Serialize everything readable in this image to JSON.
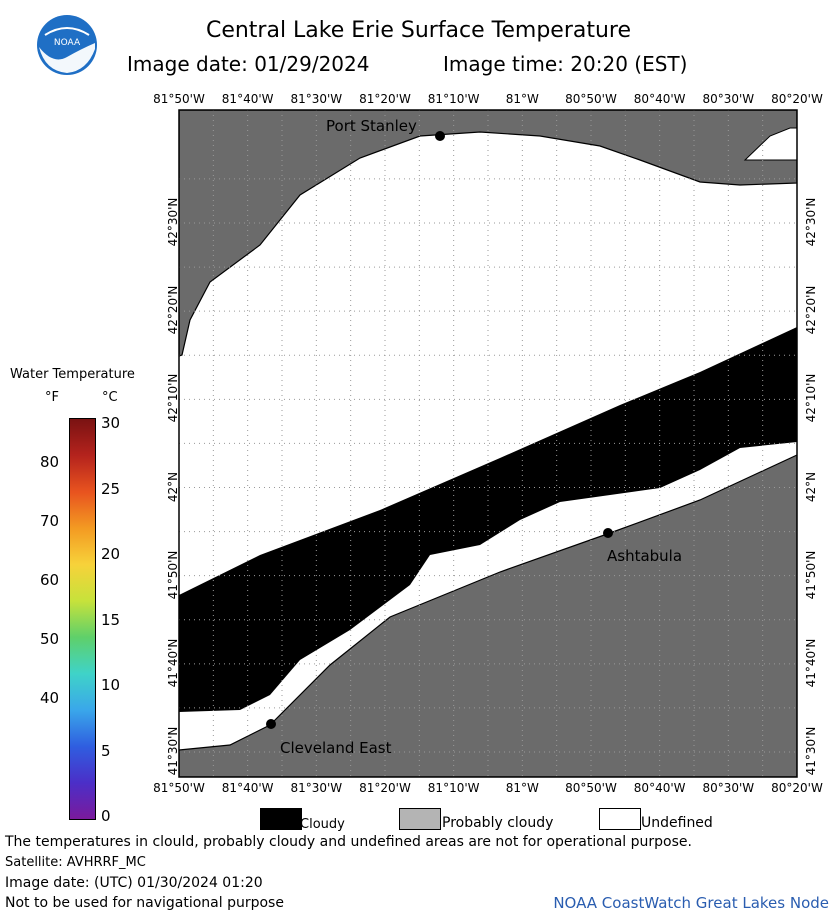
{
  "header": {
    "title": "Central Lake Erie Surface Temperature",
    "image_date": "Image date: 01/29/2024",
    "image_time": "Image time: 20:20 (EST)"
  },
  "map": {
    "lon_ticks": [
      "81°50'W",
      "81°40'W",
      "81°30'W",
      "81°20'W",
      "81°10'W",
      "81°W",
      "80°50'W",
      "80°40'W",
      "80°30'W",
      "80°20'W"
    ],
    "lat_ticks": [
      "42°30'N",
      "42°20'N",
      "42°10'N",
      "42°N",
      "41°50'N",
      "41°40'N",
      "41°30'N"
    ],
    "places": [
      "Port Stanley",
      "Ashtabula",
      "Cleveland East"
    ],
    "colors": {
      "land": "#6b6b6b",
      "cloud": "#000000",
      "undefined": "#ffffff",
      "grid": "#9a9a9a"
    }
  },
  "legend": {
    "title": "Water Temperature",
    "unit_f": "°F",
    "unit_c": "°C",
    "f_ticks": [
      "80",
      "70",
      "60",
      "50",
      "40"
    ],
    "c_ticks": [
      "30",
      "25",
      "20",
      "15",
      "10",
      "5",
      "0"
    ],
    "colors": [
      "#7a1212",
      "#b4231d",
      "#e8531f",
      "#f39a22",
      "#f7d23a",
      "#c7e23b",
      "#5fd06a",
      "#3fd3c8",
      "#3aa7ea",
      "#2f5ee0",
      "#4b2fc8",
      "#7a1a9c"
    ]
  },
  "key": {
    "cloudy": "Cloudy",
    "probably_cloudy": "Probably cloudy",
    "undefined": "Undefined"
  },
  "footer": {
    "disclaimer": "The temperatures in clould, probably cloudy and undefined areas are not for operational purpose.",
    "satellite": "Satellite: AVHRRF_MC",
    "utc_date": "Image date: (UTC) 01/30/2024  01:20",
    "nav_note": "Not to be used for navigational purpose",
    "credit": "NOAA CoastWatch Great Lakes Node"
  }
}
